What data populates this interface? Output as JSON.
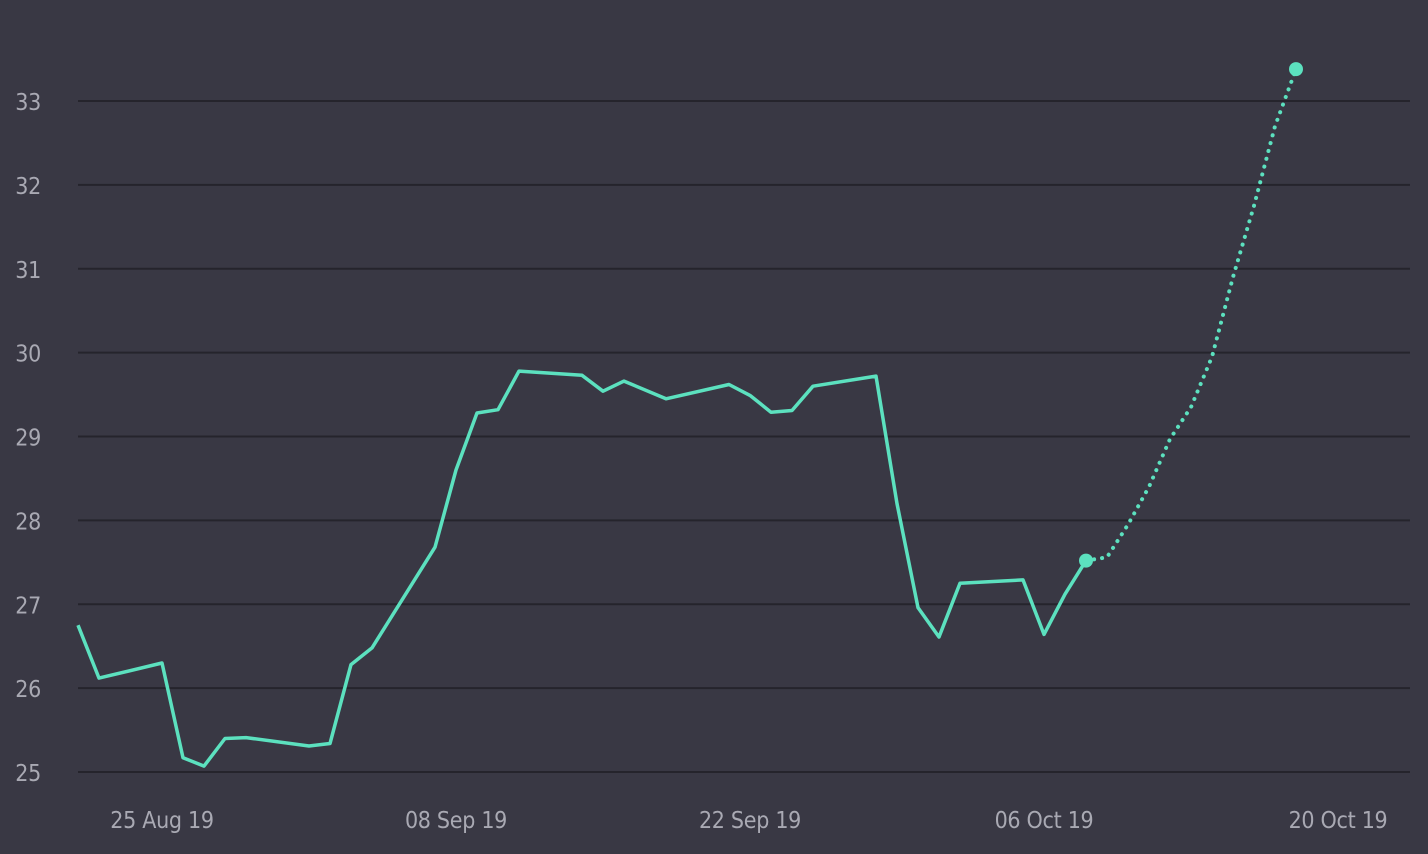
{
  "chart_data": {
    "type": "line",
    "title": "",
    "xlabel": "",
    "ylabel": "",
    "ylim": [
      25,
      33
    ],
    "y_ticks": [
      25,
      26,
      27,
      28,
      29,
      30,
      31,
      32,
      33
    ],
    "xlim": [
      "2019-08-24",
      "2019-10-27"
    ],
    "x_ticks": [
      {
        "date": "2019-08-25",
        "label": "25 Aug 19"
      },
      {
        "date": "2019-09-08",
        "label": "08 Sep 19"
      },
      {
        "date": "2019-09-22",
        "label": "22 Sep 19"
      },
      {
        "date": "2019-10-06",
        "label": "06 Oct 19"
      },
      {
        "date": "2019-10-20",
        "label": "20 Oct 19"
      }
    ],
    "grid": "horizontal",
    "colors": {
      "background": "#393844",
      "grid": "#25242c",
      "line": "#5ce1bf",
      "tick_text": "#a9a9b3"
    },
    "series": [
      {
        "style": "solid",
        "points": [
          [
            "2019-08-24",
            26.75
          ],
          [
            "2019-08-25",
            26.12
          ],
          [
            "2019-08-28",
            26.3
          ],
          [
            "2019-08-29",
            25.17
          ],
          [
            "2019-08-30",
            25.07
          ],
          [
            "2019-08-31",
            25.4
          ],
          [
            "2019-09-01",
            25.41
          ],
          [
            "2019-09-04",
            25.31
          ],
          [
            "2019-09-05",
            25.34
          ],
          [
            "2019-09-06",
            26.28
          ],
          [
            "2019-09-07",
            26.48
          ],
          [
            "2019-09-10",
            27.68
          ],
          [
            "2019-09-11",
            28.6
          ],
          [
            "2019-09-12",
            29.28
          ],
          [
            "2019-09-13",
            29.32
          ],
          [
            "2019-09-14",
            29.78
          ],
          [
            "2019-09-17",
            29.73
          ],
          [
            "2019-09-18",
            29.54
          ],
          [
            "2019-09-19",
            29.66
          ],
          [
            "2019-09-21",
            29.45
          ],
          [
            "2019-09-24",
            29.62
          ],
          [
            "2019-09-25",
            29.49
          ],
          [
            "2019-09-26",
            29.29
          ],
          [
            "2019-09-27",
            29.31
          ],
          [
            "2019-09-28",
            29.6
          ],
          [
            "2019-10-01",
            29.72
          ],
          [
            "2019-10-02",
            28.2
          ],
          [
            "2019-10-03",
            26.96
          ],
          [
            "2019-10-04",
            26.61
          ],
          [
            "2019-10-05",
            27.25
          ],
          [
            "2019-10-08",
            27.29
          ],
          [
            "2019-10-09",
            26.64
          ],
          [
            "2019-10-10",
            27.12
          ],
          [
            "2019-10-11",
            27.52
          ]
        ]
      },
      {
        "style": "dotted",
        "points": [
          [
            "2019-10-11",
            27.52
          ],
          [
            "2019-10-12",
            27.56
          ],
          [
            "2019-10-13",
            27.95
          ],
          [
            "2019-10-14",
            28.4
          ],
          [
            "2019-10-15",
            28.97
          ],
          [
            "2019-10-16",
            29.35
          ],
          [
            "2019-10-17",
            29.95
          ],
          [
            "2019-10-18",
            30.9
          ],
          [
            "2019-10-19",
            31.75
          ],
          [
            "2019-10-20",
            32.7
          ],
          [
            "2019-10-21",
            33.38
          ]
        ]
      }
    ],
    "markers": [
      [
        "2019-10-11",
        27.52
      ],
      [
        "2019-10-21",
        33.38
      ]
    ]
  }
}
